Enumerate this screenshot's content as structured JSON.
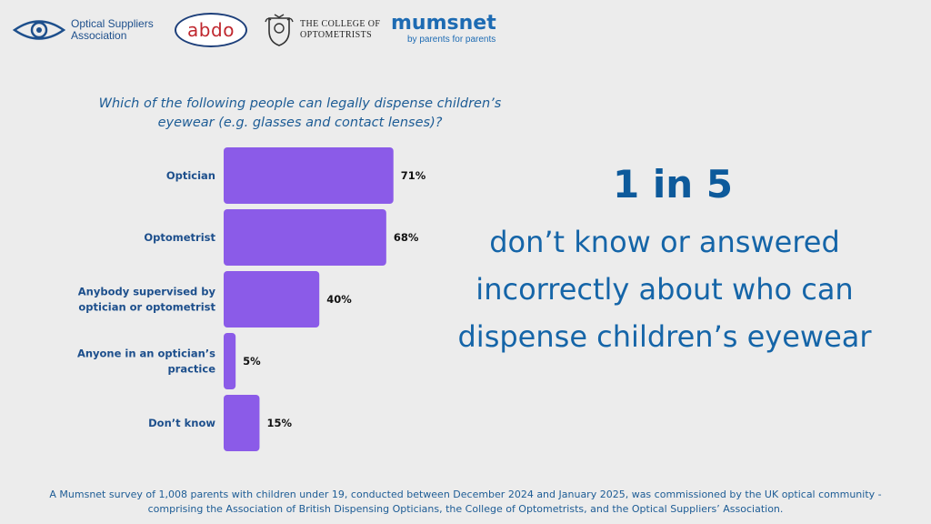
{
  "logos": {
    "osa_line1": "Optical Suppliers",
    "osa_line2": "Association",
    "abdo": "abdo",
    "coo_line1": "THE COLLEGE OF",
    "coo_line2": "OPTOMETRISTS",
    "mumsnet": "mumsnet",
    "mumsnet_tagline": "by parents for parents"
  },
  "question": "Which of the following people can legally dispense children’s eyewear (e.g. glasses and contact lenses)?",
  "chart_data": {
    "type": "bar",
    "orientation": "horizontal",
    "title": "Which of the following people can legally dispense children’s eyewear (e.g. glasses and contact lenses)?",
    "categories": [
      [
        "Optician"
      ],
      [
        "Optometrist"
      ],
      [
        "Anybody supervised by",
        "optician or optometrist"
      ],
      [
        "Anyone in an optician’s",
        "practice"
      ],
      [
        "Don’t know"
      ]
    ],
    "values": [
      71,
      68,
      40,
      5,
      15
    ],
    "value_labels": [
      "71%",
      "68%",
      "40%",
      "5%",
      "15%"
    ],
    "xlim": [
      0,
      100
    ],
    "unit": "%",
    "bar_color": "#8b5be8"
  },
  "stat": {
    "headline": "1 in 5",
    "text": "don’t know or answered incorrectly about who can dispense children’s eyewear"
  },
  "footnote": {
    "line1": "A Mumsnet survey of 1,008 parents with children under 19, conducted between December 2024 and January 2025, was commissioned by the UK optical community -",
    "line2": "comprising the Association of British Dispensing Opticians, the College of Optometrists, and the Optical Suppliers’ Association."
  }
}
